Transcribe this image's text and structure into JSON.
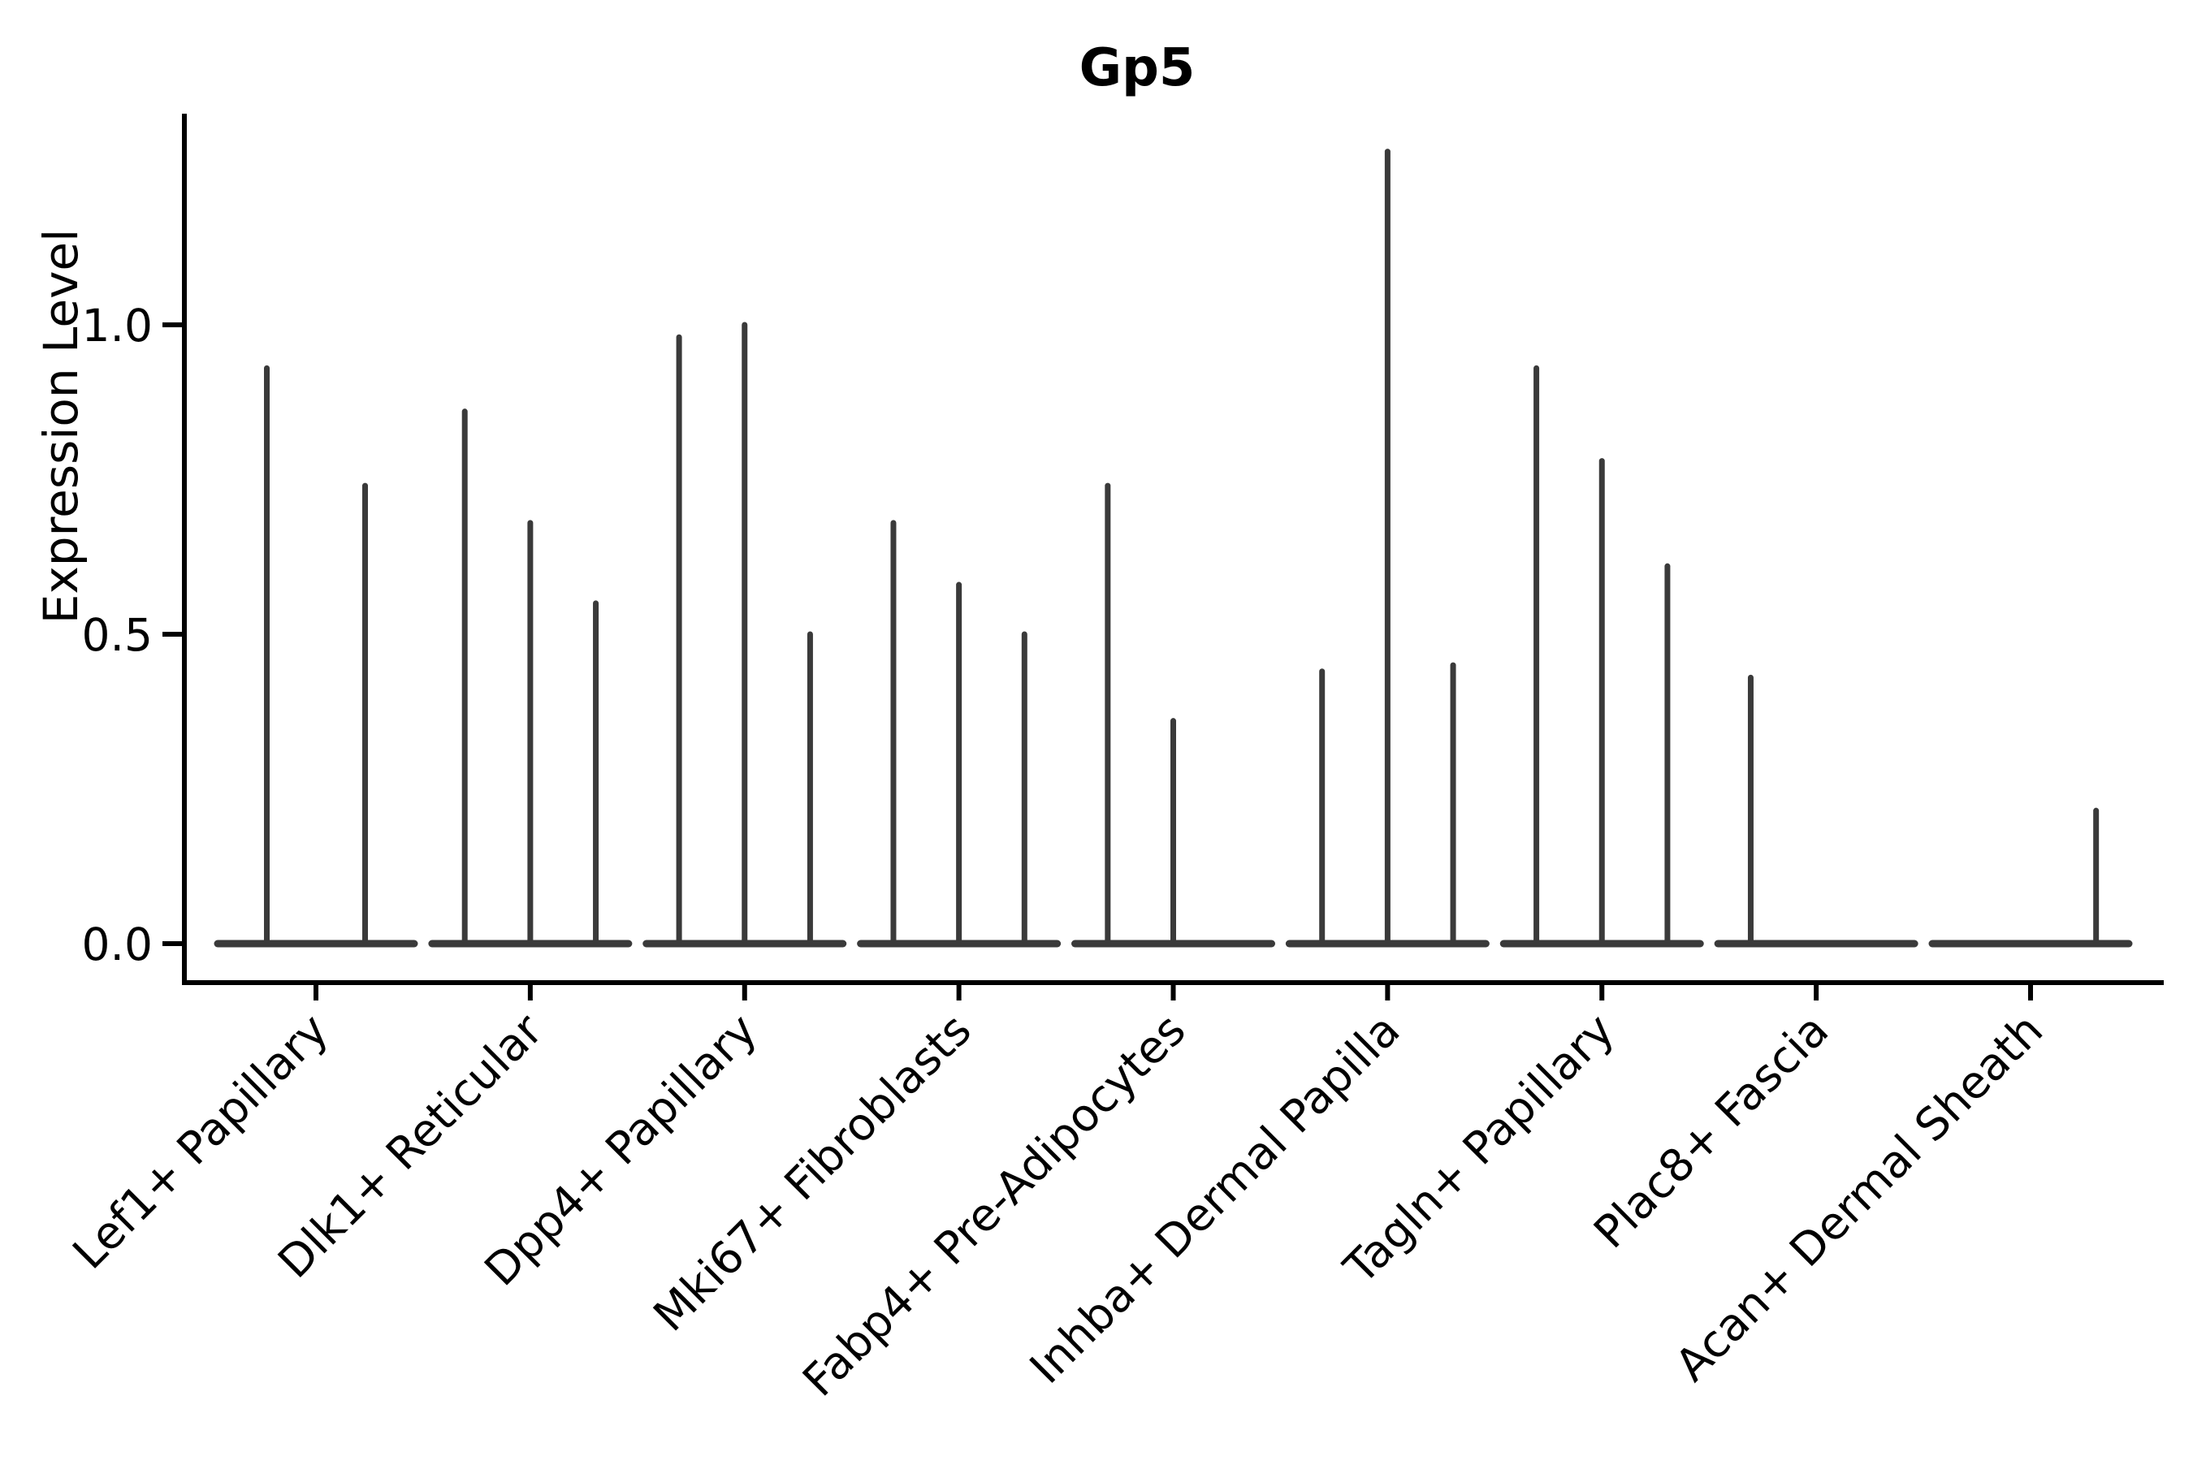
{
  "figure": {
    "background": "#ffffff"
  },
  "chart_data": {
    "type": "violin",
    "title": "Gp5",
    "ylabel": "Expression Level",
    "xlabel": "",
    "categories": [
      "Lef1+ Papillary",
      "Dlk1+ Reticular",
      "Dpp4+ Papillary",
      "Mki67+ Fibroblasts",
      "Fabp4+ Pre-Adipocytes",
      "Inhba+ Dermal Papilla",
      "Tagln+ Papillary",
      "Plac8+ Fascia",
      "Acan+ Dermal Sheath"
    ],
    "violin_max_expression": [
      [
        0.93,
        0.74
      ],
      [
        0.86,
        0.68,
        0.55
      ],
      [
        0.98,
        1.0,
        0.5
      ],
      [
        0.68,
        0.58,
        0.5
      ],
      [
        0.74,
        0.36,
        0
      ],
      [
        0.44,
        1.28,
        0.45
      ],
      [
        0.93,
        0.78,
        0.61
      ],
      [
        0.43,
        0,
        0
      ],
      [
        0,
        0,
        0.215
      ]
    ],
    "yticks": [
      0.0,
      0.5,
      1.0
    ],
    "ytick_labels": [
      "0.0",
      "0.5",
      "1.0"
    ],
    "ylim": [
      -0.06,
      1.34
    ],
    "grid": false,
    "legend": null,
    "colors": {
      "violin_stroke": "#3a3a3a",
      "axis": "#000000",
      "text": "#000000",
      "background": "#ffffff"
    }
  }
}
